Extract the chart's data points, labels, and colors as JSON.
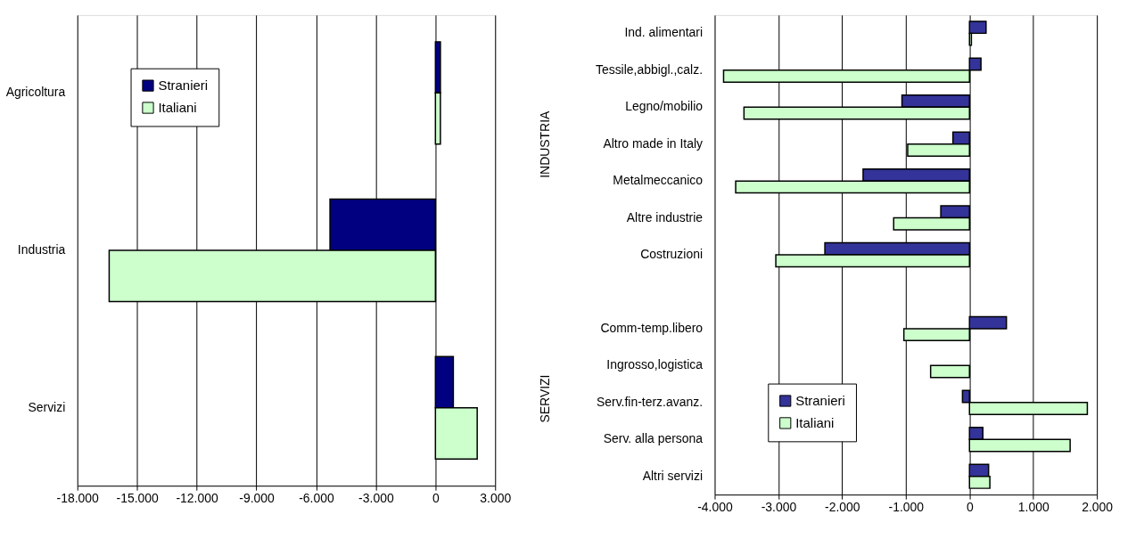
{
  "chart_data": [
    {
      "type": "bar",
      "orientation": "horizontal",
      "categories": [
        "Agricoltura",
        "Industria",
        "Servizi"
      ],
      "series": [
        {
          "name": "Stranieri",
          "color": "#000080",
          "values": [
            250,
            -5300,
            900
          ]
        },
        {
          "name": "Italiani",
          "color": "#ccffcc",
          "values": [
            250,
            -16400,
            2100
          ]
        }
      ],
      "xlim": [
        -18000,
        3000
      ],
      "xticks": [
        {
          "value": -18000,
          "label": "-18.000"
        },
        {
          "value": -15000,
          "label": "-15.000"
        },
        {
          "value": -12000,
          "label": "-12.000"
        },
        {
          "value": -9000,
          "label": "-9.000"
        },
        {
          "value": -6000,
          "label": "-6.000"
        },
        {
          "value": -3000,
          "label": "-3.000"
        },
        0,
        {
          "value": 3000,
          "label": "3.000"
        }
      ],
      "grid": "x",
      "legend": "top left"
    },
    {
      "type": "bar",
      "orientation": "horizontal",
      "categories": [
        "Ind. alimentari",
        "Tessile,abbigl.,calz.",
        "Legno/mobilio",
        "Altro made in Italy",
        "Metalmeccanico",
        "Altre industrie",
        "Costruzioni",
        null,
        "Comm-temp.libero",
        "Ingrosso,logistica",
        "Serv.fin-terz.avanz.",
        "Serv. alla persona",
        "Altri servizi"
      ],
      "series": [
        {
          "name": "Stranieri",
          "color": "#333399",
          "values": [
            260,
            180,
            -1060,
            -260,
            -1670,
            -450,
            -2270,
            null,
            580,
            null,
            -110,
            210,
            300
          ]
        },
        {
          "name": "Italiani",
          "color": "#ccffcc",
          "values": [
            30,
            -3860,
            -3540,
            -970,
            -3670,
            -1190,
            -3040,
            null,
            -1030,
            -610,
            1850,
            1580,
            320
          ]
        }
      ],
      "xlim": [
        -4000,
        2000
      ],
      "xticks": [
        {
          "value": -4000,
          "label": "-4.000"
        },
        {
          "value": -3000,
          "label": "-3.000"
        },
        {
          "value": -2000,
          "label": "-2.000"
        },
        {
          "value": -1000,
          "label": "-1.000"
        },
        0,
        {
          "value": 1000,
          "label": "1.000"
        },
        {
          "value": 2000,
          "label": "2.000"
        }
      ],
      "grid": "x",
      "legend": "bottom left",
      "annotations": [
        "INDUSTRIA",
        "SERVIZI"
      ]
    }
  ]
}
